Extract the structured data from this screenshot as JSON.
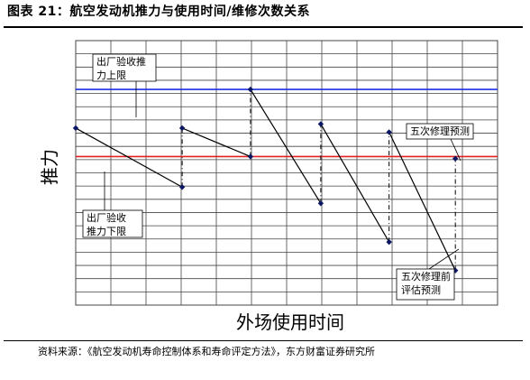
{
  "figure": {
    "title": "图表 21：航空发动机推力与使用时间/维修次数关系",
    "source": "资料来源：《航空发动机寿命控制体系和寿命评定方法》，东方财富证券研究所"
  },
  "chart_data": {
    "type": "line",
    "xlabel": "外场使用时间",
    "ylabel": "推力",
    "grid": true,
    "xlim": [
      0,
      21
    ],
    "ylim": [
      0,
      13
    ],
    "thresholds": [
      {
        "name": "upper",
        "value": 10.6,
        "color": "#1f2fe0"
      },
      {
        "name": "lower",
        "value": 7.3,
        "color": "#e02020"
      }
    ],
    "segments": [
      {
        "points": [
          [
            0,
            8.7
          ],
          [
            5.3,
            5.8
          ]
        ]
      },
      {
        "points": [
          [
            5.3,
            8.7
          ],
          [
            8.7,
            7.3
          ]
        ]
      },
      {
        "points": [
          [
            8.7,
            10.6
          ],
          [
            12.2,
            5.0
          ]
        ]
      },
      {
        "points": [
          [
            12.2,
            8.9
          ],
          [
            15.6,
            3.1
          ]
        ]
      },
      {
        "points": [
          [
            15.6,
            8.5
          ],
          [
            18.9,
            1.7
          ]
        ]
      }
    ],
    "jumps": [
      {
        "x": 5.3,
        "from": 5.8,
        "to": 8.7
      },
      {
        "x": 8.7,
        "from": 7.3,
        "to": 10.6
      },
      {
        "x": 12.2,
        "from": 5.0,
        "to": 8.9
      },
      {
        "x": 15.6,
        "from": 3.1,
        "to": 8.5
      },
      {
        "x": 18.9,
        "from": 1.7,
        "to": 7.2
      }
    ],
    "extra_points": [
      [
        18.9,
        7.2
      ]
    ],
    "colors": {
      "line": "#0b1763",
      "marker": "#0b1763",
      "grid": "#444444"
    },
    "annotations": [
      {
        "id": "upper-limit",
        "lines": [
          "出厂验收推",
          "力上限"
        ]
      },
      {
        "id": "lower-limit",
        "lines": [
          "出厂验收",
          "推力下限"
        ]
      },
      {
        "id": "fifth-repair-predict",
        "lines": [
          "五次修理预测"
        ]
      },
      {
        "id": "fifth-repair-pre-eval",
        "lines": [
          "五次修理前",
          "评估预测"
        ]
      }
    ]
  }
}
